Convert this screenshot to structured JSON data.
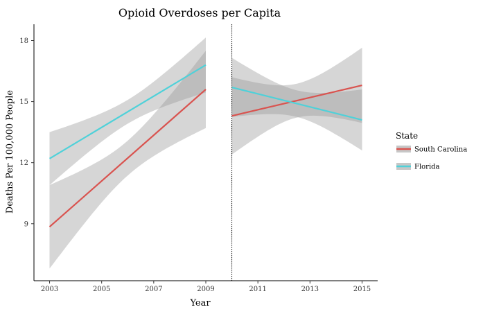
{
  "chart_data": {
    "type": "line",
    "title": "Opioid Overdoses per Capita",
    "xlabel": "Year",
    "ylabel": "Deaths Per 100,000 People",
    "xlim": [
      2002.4,
      2015.6
    ],
    "ylim": [
      6.2,
      18.8
    ],
    "xticks": [
      2003,
      2005,
      2007,
      2009,
      2011,
      2013,
      2015
    ],
    "yticks": [
      9,
      12,
      15,
      18
    ],
    "grid": false,
    "legend_position": "right",
    "legend_title": "State",
    "vline": {
      "x": 2010,
      "style": "dotted"
    },
    "series": [
      {
        "name": "South Carolina",
        "color": "#d9534f",
        "segments": [
          {
            "x": [
              2003,
              2009
            ],
            "y": [
              8.85,
              15.6
            ],
            "ci_lower": [
              6.8,
              13.7
            ],
            "ci_upper": [
              10.9,
              17.5
            ]
          },
          {
            "x": [
              2010,
              2015
            ],
            "y": [
              14.3,
              15.8
            ],
            "ci_lower": [
              12.4,
              14.0
            ],
            "ci_upper": [
              16.2,
              17.7
            ]
          }
        ]
      },
      {
        "name": "Florida",
        "color": "#4fd1d9",
        "segments": [
          {
            "x": [
              2003,
              2009
            ],
            "y": [
              12.2,
              16.8
            ],
            "ci_lower": [
              10.9,
              15.4
            ],
            "ci_upper": [
              13.5,
              18.1
            ]
          },
          {
            "x": [
              2010,
              2015
            ],
            "y": [
              15.7,
              14.1
            ],
            "ci_lower": [
              14.3,
              12.6
            ],
            "ci_upper": [
              17.2,
              15.6
            ]
          }
        ]
      }
    ]
  }
}
